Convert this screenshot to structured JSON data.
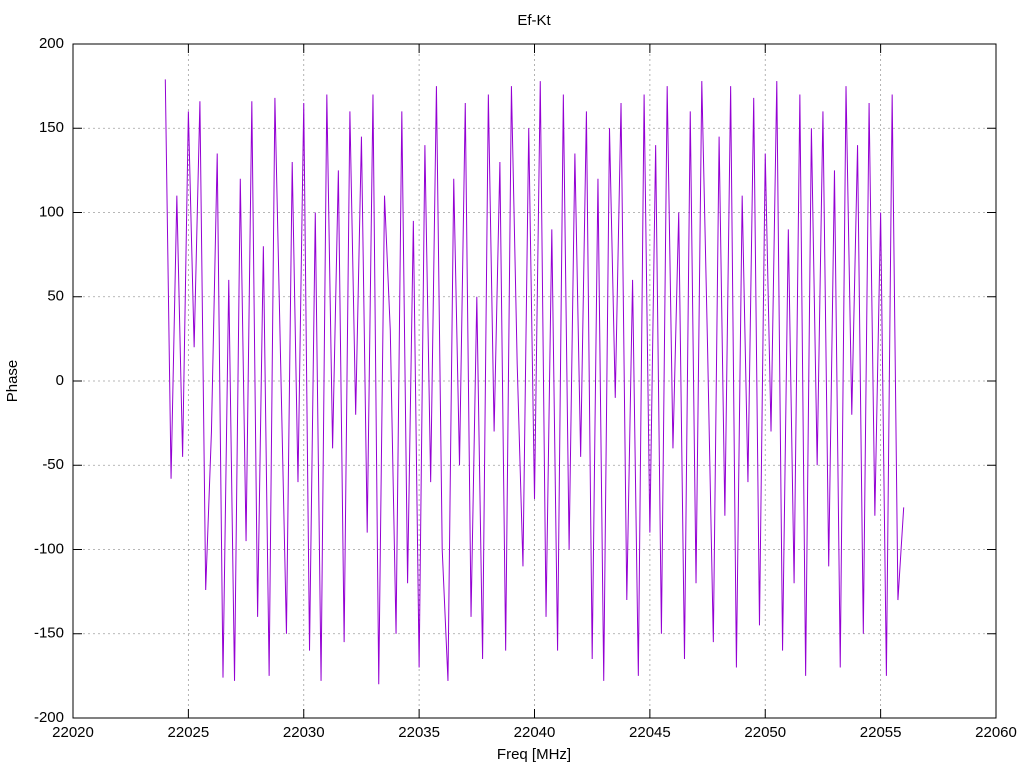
{
  "chart_data": {
    "type": "line",
    "title": "Ef-Kt",
    "xlabel": "Freq [MHz]",
    "ylabel": "Phase",
    "xlim": [
      22020,
      22060
    ],
    "xticks": [
      22020,
      22025,
      22030,
      22035,
      22040,
      22045,
      22050,
      22055,
      22060
    ],
    "ylim": [
      -200,
      200
    ],
    "yticks": [
      -200,
      -150,
      -100,
      -50,
      0,
      50,
      100,
      150,
      200
    ],
    "grid": true,
    "series": [
      {
        "color": "#9400d3",
        "x": [
          22024,
          22024.25,
          22024.5,
          22024.75,
          22025,
          22025.25,
          22025.5,
          22025.75,
          22026,
          22026.25,
          22026.5,
          22026.75,
          22027,
          22027.25,
          22027.5,
          22027.75,
          22028,
          22028.25,
          22028.5,
          22028.75,
          22029,
          22029.25,
          22029.5,
          22029.75,
          22030,
          22030.25,
          22030.5,
          22030.75,
          22031,
          22031.25,
          22031.5,
          22031.75,
          22032,
          22032.25,
          22032.5,
          22032.75,
          22033,
          22033.25,
          22033.5,
          22033.75,
          22034,
          22034.25,
          22034.5,
          22034.75,
          22035,
          22035.25,
          22035.5,
          22035.75,
          22036,
          22036.25,
          22036.5,
          22036.75,
          22037,
          22037.25,
          22037.5,
          22037.75,
          22038,
          22038.25,
          22038.5,
          22038.75,
          22039,
          22039.25,
          22039.5,
          22039.75,
          22040,
          22040.25,
          22040.5,
          22040.75,
          22041,
          22041.25,
          22041.5,
          22041.75,
          22042,
          22042.25,
          22042.5,
          22042.75,
          22043,
          22043.25,
          22043.5,
          22043.75,
          22044,
          22044.25,
          22044.5,
          22044.75,
          22045,
          22045.25,
          22045.5,
          22045.75,
          22046,
          22046.25,
          22046.5,
          22046.75,
          22047,
          22047.25,
          22047.5,
          22047.75,
          22048,
          22048.25,
          22048.5,
          22048.75,
          22049,
          22049.25,
          22049.5,
          22049.75,
          22050,
          22050.25,
          22050.5,
          22050.75,
          22051,
          22051.25,
          22051.5,
          22051.75,
          22052,
          22052.25,
          22052.5,
          22052.75,
          22053,
          22053.25,
          22053.5,
          22053.75,
          22054,
          22054.25,
          22054.5,
          22054.75,
          22055,
          22055.25,
          22055.5,
          22055.75,
          22056
        ],
        "values": [
          179,
          -58,
          110,
          -45,
          160,
          20,
          166,
          -124,
          -30,
          135,
          -176,
          60,
          -178,
          120,
          -95,
          166,
          -140,
          80,
          -175,
          168,
          10,
          -150,
          130,
          -60,
          165,
          -160,
          100,
          -178,
          170,
          -40,
          125,
          -155,
          160,
          -20,
          145,
          -90,
          170,
          -180,
          110,
          30,
          -150,
          160,
          -120,
          95,
          -170,
          140,
          -60,
          175,
          -100,
          -178,
          120,
          -50,
          165,
          -140,
          50,
          -165,
          170,
          -30,
          130,
          -160,
          175,
          10,
          -110,
          150,
          -70,
          178,
          -140,
          90,
          -160,
          170,
          -100,
          135,
          -45,
          160,
          -165,
          120,
          -178,
          150,
          -10,
          165,
          -130,
          60,
          -175,
          170,
          -90,
          140,
          -150,
          175,
          -40,
          100,
          -165,
          160,
          -120,
          178,
          20,
          -155,
          145,
          -80,
          175,
          -170,
          110,
          -60,
          168,
          -145,
          135,
          -30,
          178,
          -160,
          90,
          -120,
          170,
          -175,
          150,
          -50,
          160,
          -110,
          125,
          -170,
          175,
          -20,
          140,
          -150,
          165,
          -80,
          100,
          -175,
          170,
          -130,
          -75
        ]
      }
    ]
  }
}
